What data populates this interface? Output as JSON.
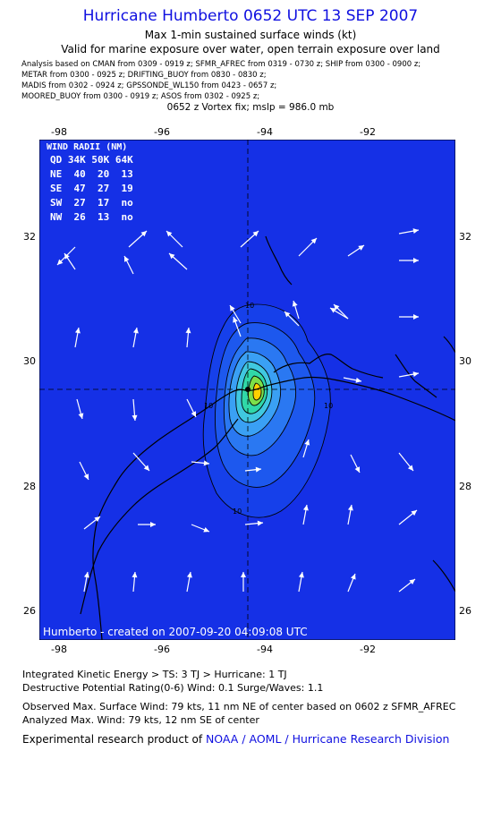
{
  "header": {
    "title": "Hurricane Humberto 0652 UTC 13 SEP 2007",
    "subtitle1": "Max 1-min sustained surface winds (kt)",
    "subtitle2": "Valid for marine exposure over water, open terrain exposure over land",
    "sources": [
      "Analysis based on  CMAN from 0309 - 0919 z;  SFMR_AFREC from 0319 - 0730 z;  SHIP from 0300 - 0900 z;",
      "METAR from 0300 - 0925 z;  DRIFTING_BUOY from 0830 - 0830 z;",
      "MADIS from 0302 - 0924 z;  GPSSONDE_WL150 from 0423 - 0657 z;",
      "MOORED_BUOY from 0300 - 0919 z;  ASOS from 0302 - 0925 z;"
    ],
    "vortex_fix": "0652 z Vortex fix; mslp = 986.0 mb"
  },
  "map": {
    "lon_ticks": [
      "-98",
      "-96",
      "-94",
      "-92"
    ],
    "lat_ticks": [
      "32",
      "30",
      "28",
      "26"
    ],
    "wind_radii": {
      "title": "WIND RADII (NM)",
      "header": "QD 34K 50K 64K",
      "rows": [
        "NE  40  20  13",
        "SE  47  27  19",
        "SW  27  17  no",
        "NW  26  13  no"
      ]
    },
    "contour_labels": [
      "10",
      "10",
      "10",
      "10"
    ],
    "watermark": "Humberto - created on 2007-09-20 04:09:08 UTC",
    "colors": {
      "ocean": "#1a2cf0",
      "background_blue": "#1530e6",
      "peak": "#ffd000"
    }
  },
  "footer": {
    "ike": "Integrated Kinetic Energy > TS: 3 TJ   > Hurricane: 1 TJ",
    "dpr": "Destructive Potential Rating(0-6)   Wind: 0.1 Surge/Waves: 1.1",
    "obs_max": "Observed Max. Surface Wind: 79 kts, 11 nm NE of center based on 0602 z SFMR_AFREC",
    "ana_max": "Analyzed Max. Wind: 79 kts, 12 nm SE of center",
    "credit": "Experimental research product of",
    "credit_link": "NOAA / AOML / Hurricane Research Division"
  }
}
